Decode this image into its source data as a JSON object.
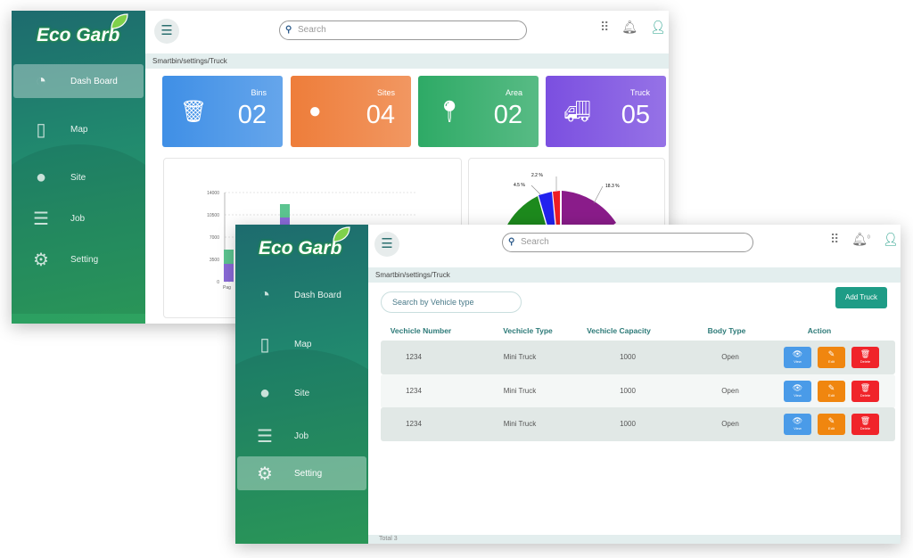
{
  "brand": {
    "logo": "Eco Garb"
  },
  "back_window": {
    "nav": [
      {
        "label": "Dash Board",
        "icon": "speedometer-icon",
        "active": true
      },
      {
        "label": "Map",
        "icon": "map-icon"
      },
      {
        "label": "Site",
        "icon": "globe-icon"
      },
      {
        "label": "Job",
        "icon": "server-icon"
      },
      {
        "label": "Setting",
        "icon": "gear-icon"
      }
    ],
    "search_placeholder": "Search",
    "breadcrumb": "Smartbin/settings/Truck",
    "cards": [
      {
        "label": "Bins",
        "value": "02",
        "icon": "trash-icon",
        "color": "#3f8fe6"
      },
      {
        "label": "Sites",
        "value": "04",
        "icon": "globe-icon",
        "color": "#ee7d3a"
      },
      {
        "label": "Area",
        "value": "02",
        "icon": "location-pin-icon",
        "color": "#2eaa66"
      },
      {
        "label": "Truck",
        "value": "05",
        "icon": "truck-icon",
        "color": "#7b4fe0"
      }
    ],
    "bar_chart": {
      "y_ticks": [
        "14000",
        "10500",
        "7000",
        "3500",
        "0"
      ],
      "x_label": "Pag"
    },
    "pie_labels": [
      "2.2 %",
      "4.5 %",
      "18.3 %"
    ]
  },
  "front_window": {
    "nav": [
      {
        "label": "Dash Board",
        "icon": "speedometer-icon"
      },
      {
        "label": "Map",
        "icon": "map-icon"
      },
      {
        "label": "Site",
        "icon": "globe-icon"
      },
      {
        "label": "Job",
        "icon": "server-icon"
      },
      {
        "label": "Setting",
        "icon": "gear-icon",
        "active": true
      }
    ],
    "search_placeholder": "Search",
    "notification_count": "0",
    "breadcrumb": "Smartbin/settings/Truck",
    "filter_placeholder": "Search by Vehicle type",
    "add_button": "Add Truck",
    "columns": [
      "Vechicle Number",
      "Vechicle Type",
      "Vechicle Capacity",
      "Body Type",
      "Action"
    ],
    "rows": [
      {
        "number": "1234",
        "type": "Mini Truck",
        "capacity": "1000",
        "body": "Open"
      },
      {
        "number": "1234",
        "type": "Mini Truck",
        "capacity": "1000",
        "body": "Open"
      },
      {
        "number": "1234",
        "type": "Mini Truck",
        "capacity": "1000",
        "body": "Open"
      }
    ],
    "actions": {
      "view": "View",
      "edit": "Edit",
      "delete": "Delete"
    },
    "footer": "Total 3",
    "colors": {
      "view": "#4a9be8",
      "edit": "#f0860f",
      "delete": "#f0242a",
      "accent": "#1e9c86"
    }
  }
}
